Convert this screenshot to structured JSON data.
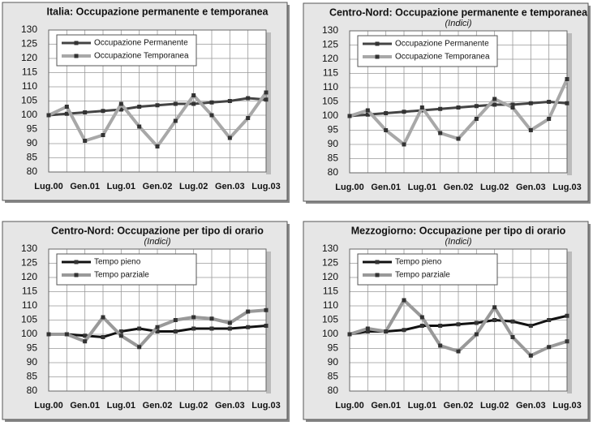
{
  "chart_data": [
    {
      "type": "line",
      "title": "Italia: Occupazione permanente e temporanea",
      "categories": [
        "Lug.00",
        null,
        "Gen.01",
        null,
        "Lug.01",
        null,
        "Gen.02",
        null,
        "Lug.02",
        null,
        "Gen.03",
        null,
        "Lug.03"
      ],
      "series": [
        {
          "name": "Occupazione Permanente",
          "color": "#444444",
          "values": [
            100,
            100.5,
            101,
            101.5,
            102,
            103,
            103.5,
            104,
            104,
            104.5,
            105,
            106,
            105.5
          ]
        },
        {
          "name": "Occupazione Temporanea",
          "color": "#a8a8a8",
          "values": [
            100,
            103,
            91,
            93,
            104,
            96,
            89,
            98,
            107,
            100,
            92,
            99,
            108
          ]
        }
      ],
      "ylim": [
        80,
        130
      ],
      "yticks": [
        80,
        85,
        90,
        95,
        100,
        105,
        110,
        115,
        120,
        125,
        130
      ],
      "grid": true
    },
    {
      "type": "line",
      "title": "Centro-Nord: Occupazione permanente e temporanea",
      "subtitle": "(Indici)",
      "categories": [
        "Lug.00",
        null,
        "Gen.01",
        null,
        "Lug.01",
        null,
        "Gen.02",
        null,
        "Lug.02",
        null,
        "Gen.03",
        null,
        "Lug.03"
      ],
      "series": [
        {
          "name": "Occupazione Permanente",
          "color": "#444444",
          "values": [
            100,
            100.5,
            101,
            101.5,
            102,
            102.5,
            103,
            103.5,
            104,
            104,
            104.5,
            105,
            104.5
          ]
        },
        {
          "name": "Occupazione Temporanea",
          "color": "#a8a8a8",
          "values": [
            100,
            102,
            95,
            90,
            103,
            94,
            92,
            99,
            106,
            103,
            95,
            99,
            113
          ]
        }
      ],
      "ylim": [
        80,
        130
      ],
      "yticks": [
        80,
        85,
        90,
        95,
        100,
        105,
        110,
        115,
        120,
        125,
        130
      ],
      "grid": true
    },
    {
      "type": "line",
      "title": "Centro-Nord: Occupazione per tipo di orario",
      "subtitle": "(Indici)",
      "categories": [
        "Lug.00",
        null,
        "Gen.01",
        null,
        "Lug.01",
        null,
        "Gen.02",
        null,
        "Lug.02",
        null,
        "Gen.03",
        null,
        "Lug.03"
      ],
      "series": [
        {
          "name": "Tempo pieno",
          "color": "#111111",
          "values": [
            100,
            100,
            99.5,
            99,
            101,
            102,
            101,
            101,
            102,
            102,
            102,
            102.5,
            103
          ]
        },
        {
          "name": "Tempo parziale",
          "color": "#999999",
          "values": [
            100,
            100,
            97.5,
            106,
            99.5,
            95.5,
            102.5,
            105,
            106,
            105.5,
            104,
            108,
            108.5
          ]
        }
      ],
      "ylim": [
        80,
        130
      ],
      "yticks": [
        80,
        85,
        90,
        95,
        100,
        105,
        110,
        115,
        120,
        125,
        130
      ],
      "grid": true
    },
    {
      "type": "line",
      "title": "Mezzogiorno: Occupazione per tipo di orario",
      "subtitle": "(Indici)",
      "categories": [
        "Lug.00",
        null,
        "Gen.01",
        null,
        "Lug.01",
        null,
        "Gen.02",
        null,
        "Lug.02",
        null,
        "Gen.03",
        null,
        "Lug.03"
      ],
      "series": [
        {
          "name": "Tempo pieno",
          "color": "#111111",
          "values": [
            100,
            101,
            101,
            101.5,
            103,
            103,
            103.5,
            104,
            105,
            104.5,
            103,
            105,
            106.5
          ]
        },
        {
          "name": "Tempo parziale",
          "color": "#999999",
          "values": [
            100,
            102,
            101,
            112,
            106,
            96,
            94,
            100,
            109.5,
            99,
            92.5,
            95.5,
            97.5
          ]
        }
      ],
      "ylim": [
        80,
        130
      ],
      "yticks": [
        80,
        85,
        90,
        95,
        100,
        105,
        110,
        115,
        120,
        125,
        130
      ],
      "grid": true
    }
  ]
}
